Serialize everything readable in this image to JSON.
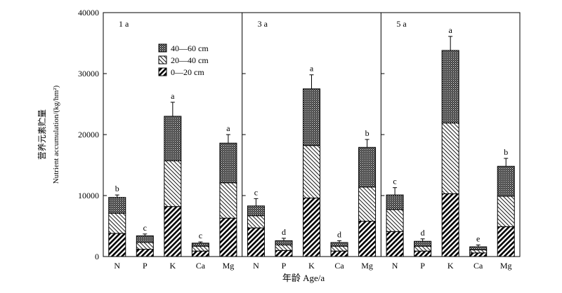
{
  "chart_data": {
    "type": "bar",
    "stacked": true,
    "xlabel": "年龄 Age/a",
    "ylabel": "营养元素贮量",
    "ylabel_sub": "Nutrient accumulation/(kg/hm²)",
    "ylim": [
      0,
      40000
    ],
    "yticks": [
      0,
      10000,
      20000,
      30000,
      40000
    ],
    "categories": [
      "N",
      "P",
      "K",
      "Ca",
      "Mg"
    ],
    "legend": {
      "placement": "inside-left-panel",
      "items": [
        {
          "name": "40—60 cm",
          "pattern": "dots"
        },
        {
          "name": "20—40 cm",
          "pattern": "hatch-light"
        },
        {
          "name": "0—20 cm",
          "pattern": "hatch-dense"
        }
      ]
    },
    "panels": [
      {
        "label": "1 a",
        "series": [
          {
            "name": "0—20 cm",
            "values": [
              3800,
              1200,
              8200,
              900,
              6300
            ]
          },
          {
            "name": "20—40 cm",
            "values": [
              3300,
              1100,
              7500,
              800,
              5800
            ]
          },
          {
            "name": "40—60 cm",
            "values": [
              2600,
              1100,
              7300,
              500,
              6500
            ]
          }
        ],
        "error": [
          400,
          300,
          2300,
          200,
          1400
        ],
        "letters": [
          "b",
          "c",
          "a",
          "c",
          "a"
        ]
      },
      {
        "label": "3 a",
        "series": [
          {
            "name": "0—20 cm",
            "values": [
              4700,
              1000,
              9600,
              900,
              5800
            ]
          },
          {
            "name": "20—40 cm",
            "values": [
              2000,
              900,
              8600,
              800,
              5600
            ]
          },
          {
            "name": "40—60 cm",
            "values": [
              1600,
              700,
              9300,
              600,
              6500
            ]
          }
        ],
        "error": [
          1200,
          400,
          2300,
          300,
          1300
        ],
        "letters": [
          "c",
          "d",
          "a",
          "d",
          "b"
        ]
      },
      {
        "label": "5 a",
        "series": [
          {
            "name": "0—20 cm",
            "values": [
              4100,
              900,
              10300,
              600,
              4900
            ]
          },
          {
            "name": "20—40 cm",
            "values": [
              3600,
              800,
              11600,
              500,
              5000
            ]
          },
          {
            "name": "40—60 cm",
            "values": [
              2400,
              800,
              11900,
              500,
              4900
            ]
          }
        ],
        "error": [
          1200,
          400,
          2300,
          300,
          1300
        ],
        "letters": [
          "c",
          "d",
          "a",
          "e",
          "b"
        ]
      }
    ]
  }
}
